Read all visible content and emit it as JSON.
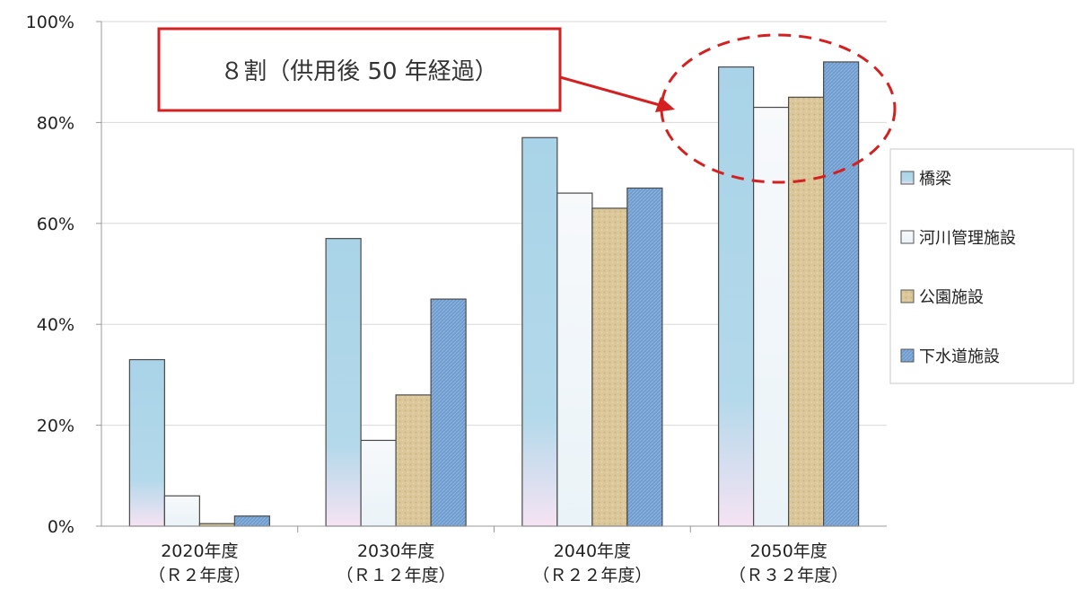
{
  "chart_data": {
    "type": "bar",
    "categories": [
      [
        "2020年度",
        "（Ｒ２年度）"
      ],
      [
        "2030年度",
        "（Ｒ１２年度）"
      ],
      [
        "2040年度",
        "（Ｒ２２年度）"
      ],
      [
        "2050年度",
        "（Ｒ３２年度）"
      ]
    ],
    "series": [
      {
        "name": "橋梁",
        "values": [
          33,
          57,
          77,
          91
        ],
        "color": "#a9d3e8"
      },
      {
        "name": "河川管理施設",
        "values": [
          6,
          17,
          66,
          83
        ],
        "color": "#f2f6f9"
      },
      {
        "name": "公園施設",
        "values": [
          0.5,
          26,
          63,
          85
        ],
        "color": "#dcc79a"
      },
      {
        "name": "下水道施設",
        "values": [
          2,
          45,
          67,
          92
        ],
        "color": "#6f9ccf"
      }
    ],
    "ylim": [
      0,
      100
    ],
    "yticks": [
      "0%",
      "20%",
      "40%",
      "60%",
      "80%",
      "100%"
    ],
    "title": "",
    "xlabel": "",
    "ylabel": "",
    "legend": "right",
    "grid": true,
    "annotation": {
      "text": "８割（供用後 50 年経過）",
      "target_category": "2050年度",
      "color": "#d42020"
    }
  }
}
